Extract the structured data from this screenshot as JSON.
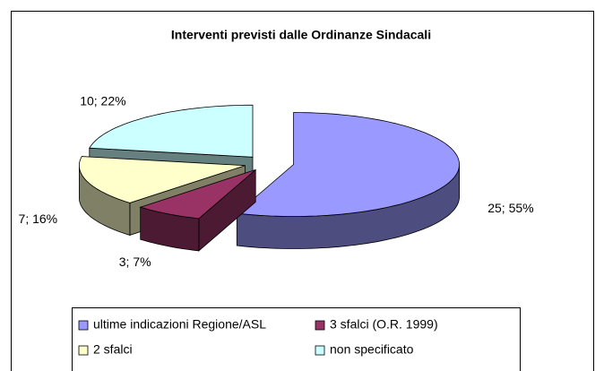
{
  "chart_data": {
    "type": "pie3d",
    "title": "Interventi previsti dalle Ordinanze Sindacali",
    "categories": [
      "ultime indicazioni Regione/ASL",
      "3 sfalci (O.R. 1999)",
      "2 sfalci",
      "non specificato"
    ],
    "values": [
      25,
      3,
      7,
      10
    ],
    "value_labels": [
      "25; 55%",
      "3; 7%",
      "7; 16%",
      "10; 22%"
    ],
    "colors": [
      "#9999ff",
      "#993366",
      "#ffffcc",
      "#ccffff"
    ],
    "legend": "bottom"
  }
}
